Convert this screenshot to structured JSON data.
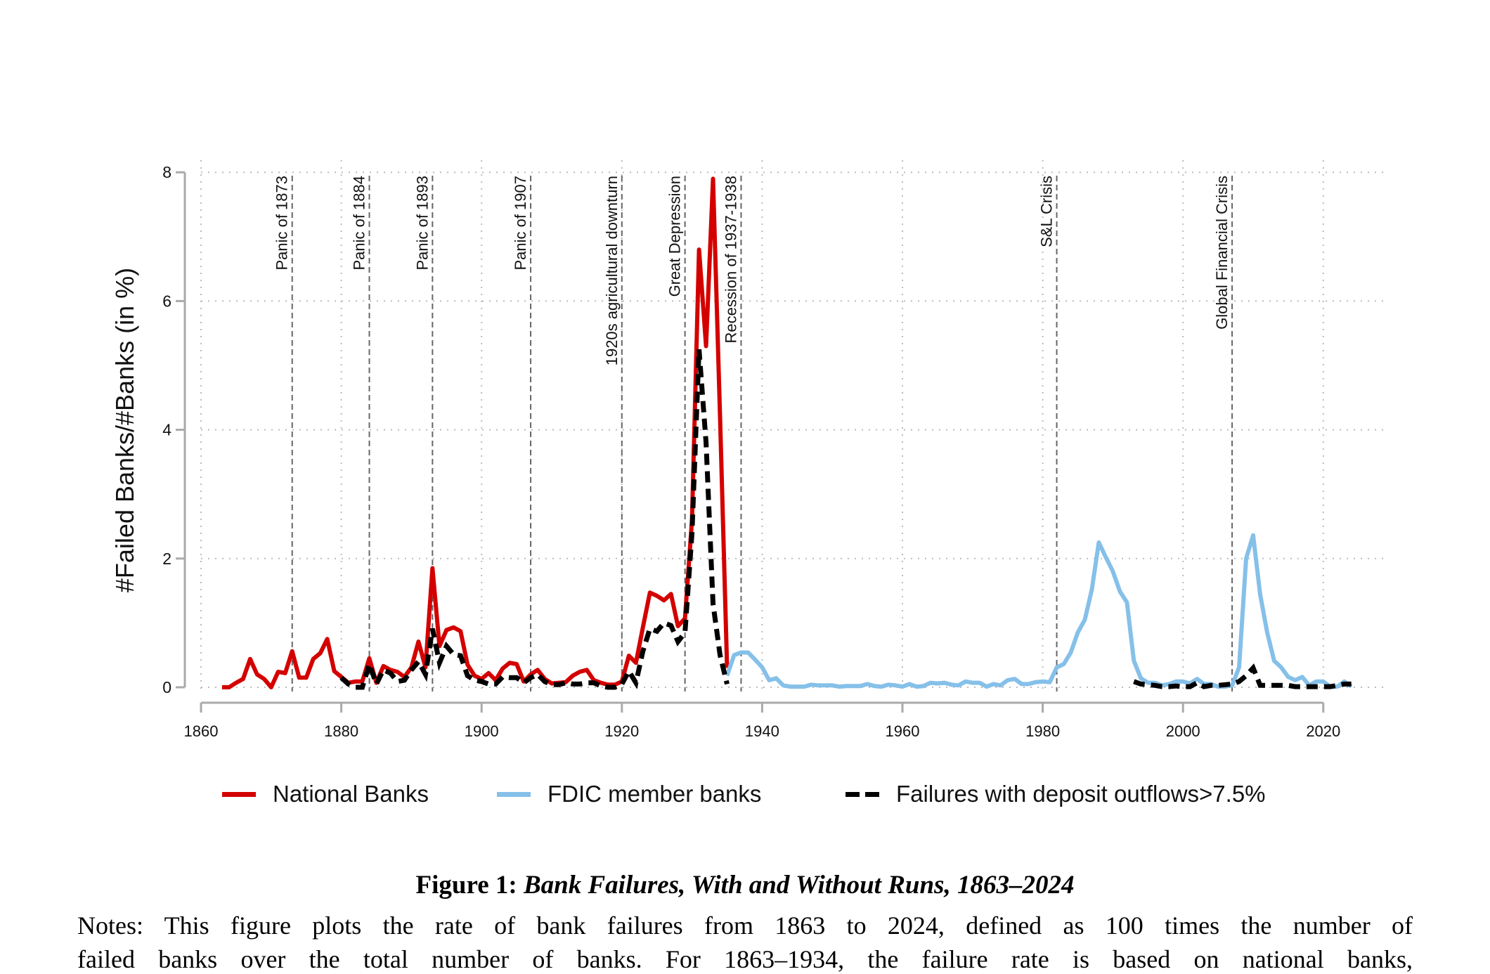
{
  "chart_data": {
    "type": "line",
    "title": "",
    "xlabel": "",
    "ylabel": "#Failed Banks/#Banks (in %)",
    "xlim": [
      1860,
      2025
    ],
    "ylim": [
      0,
      8
    ],
    "xticks": [
      1860,
      1880,
      1900,
      1920,
      1940,
      1960,
      1980,
      2000,
      2020
    ],
    "yticks": [
      0,
      2,
      4,
      6,
      8
    ],
    "grid": true,
    "legend_placement": "bottom",
    "colors": {
      "national": "#d40000",
      "fdic": "#85c0e9",
      "runs": "#000000",
      "event": "#666666"
    },
    "series": [
      {
        "name": "National Banks",
        "style": "solid",
        "color_key": "national",
        "segments": [
          {
            "start": 1863,
            "values": [
              0,
              0,
              0.07,
              0.13,
              0.44,
              0.2,
              0.13,
              0,
              0.24,
              0.22,
              0.56,
              0.15,
              0.15,
              0.44,
              0.53,
              0.75,
              0.25,
              0.16,
              0.07,
              0.09,
              0.09,
              0.45,
              0.07,
              0.33,
              0.27,
              0.24,
              0.16,
              0.31,
              0.71,
              0.31,
              1.85,
              0.64,
              0.89,
              0.93,
              0.87,
              0.35,
              0.18,
              0.13,
              0.22,
              0.11,
              0.29,
              0.38,
              0.36,
              0.09,
              0.2,
              0.27,
              0.13,
              0.06,
              0.07,
              0.08,
              0.18,
              0.24,
              0.27,
              0.11,
              0.07,
              0.04,
              0.04,
              0.09,
              0.49,
              0.38,
              0.93,
              1.47,
              1.42,
              1.35,
              1.45,
              0.95,
              1.07,
              2.6,
              6.8,
              5.3,
              7.9,
              4.2,
              0.3
            ]
          }
        ]
      },
      {
        "name": "FDIC member banks",
        "style": "solid",
        "color_key": "fdic",
        "segments": [
          {
            "start": 1935,
            "values": [
              0.18,
              0.5,
              0.54,
              0.54,
              0.43,
              0.31,
              0.11,
              0.14,
              0.03,
              0.01,
              0.01,
              0.01,
              0.04,
              0.03,
              0.03,
              0.03,
              0.01,
              0.02,
              0.02,
              0.02,
              0.05,
              0.02,
              0.01,
              0.04,
              0.03,
              0.01,
              0.05,
              0.01,
              0.02,
              0.07,
              0.06,
              0.07,
              0.04,
              0.03,
              0.09,
              0.07,
              0.07,
              0.01,
              0.05,
              0.03,
              0.11,
              0.13,
              0.05,
              0.05,
              0.08,
              0.09,
              0.08,
              0.31,
              0.36,
              0.54,
              0.85,
              1.05,
              1.52,
              2.25,
              2.02,
              1.8,
              1.49,
              1.32,
              0.41,
              0.14,
              0.07,
              0.07,
              0.03,
              0.05,
              0.09,
              0.09,
              0.06,
              0.13,
              0.05,
              0.05,
              0.01,
              0.01,
              0.03,
              0.31,
              2.0,
              2.36,
              1.44,
              0.85,
              0.41,
              0.31,
              0.16,
              0.11,
              0.16,
              0.03,
              0.09,
              0.09,
              0.01,
              0.01,
              0.09,
              0.01
            ]
          }
        ]
      },
      {
        "name": "Failures with deposit outflows>7.5%",
        "style": "dashed",
        "color_key": "runs",
        "segments": [
          {
            "start": 1880,
            "values": [
              0.15,
              0.05,
              0,
              0,
              0.36,
              0.05,
              0.27,
              0.22,
              0.09,
              0.11,
              0.27,
              0.4,
              0.2,
              0.91,
              0.38,
              0.64,
              0.51,
              0.49,
              0.18,
              0.11,
              0.09,
              0.05,
              0.05,
              0.16,
              0.15,
              0.15,
              0.07,
              0.15,
              0.2,
              0.09,
              0.04,
              0.04,
              0.07,
              0.05,
              0.05,
              0.07,
              0.07,
              0.02,
              0,
              0,
              0.05,
              0.25,
              0.07,
              0.56,
              0.91,
              0.87,
              1.0,
              0.96,
              0.71,
              0.85,
              2.4,
              5.25,
              3.8,
              1.3,
              0.5,
              0.05
            ]
          },
          {
            "start": 1993,
            "values": [
              0.09,
              0.05,
              0.04,
              0.03,
              0.01,
              0.01,
              0.02,
              0.01,
              0.01,
              0.07,
              0.01,
              0.03,
              0.03,
              0.04,
              0.05,
              0.09,
              0.18,
              0.3,
              0.03,
              0.03,
              0.03,
              0.03,
              0.03,
              0.01,
              0.01,
              0.01,
              0.01,
              0.01,
              0.01,
              0.03,
              0.05,
              0.05
            ]
          }
        ]
      }
    ],
    "annotations": [
      {
        "year": 1873,
        "label": "Panic of 1873"
      },
      {
        "year": 1884,
        "label": "Panic of 1884"
      },
      {
        "year": 1893,
        "label": "Panic of 1893"
      },
      {
        "year": 1907,
        "label": "Panic of 1907"
      },
      {
        "year": 1920,
        "label": "1920s agricultural downturn"
      },
      {
        "year": 1929,
        "label": "Great Depression"
      },
      {
        "year": 1937,
        "label": "Recession of 1937-1938"
      },
      {
        "year": 1982,
        "label": "S&L Crisis"
      },
      {
        "year": 2007,
        "label": "Global Financial Crisis"
      }
    ]
  },
  "legend": {
    "national": "National Banks",
    "fdic": "FDIC member banks",
    "runs": "Failures with deposit outflows>7.5%"
  },
  "caption": {
    "prefix": "Figure 1:",
    "title": "Bank Failures, With and Without Runs, 1863–2024"
  },
  "notes": {
    "line1": "Notes: This figure plots the rate of bank failures from 1863 to 2024, defined as 100 times the number of",
    "line2": "failed banks over the total number of banks. For 1863–1934, the failure rate is based on national banks,"
  }
}
